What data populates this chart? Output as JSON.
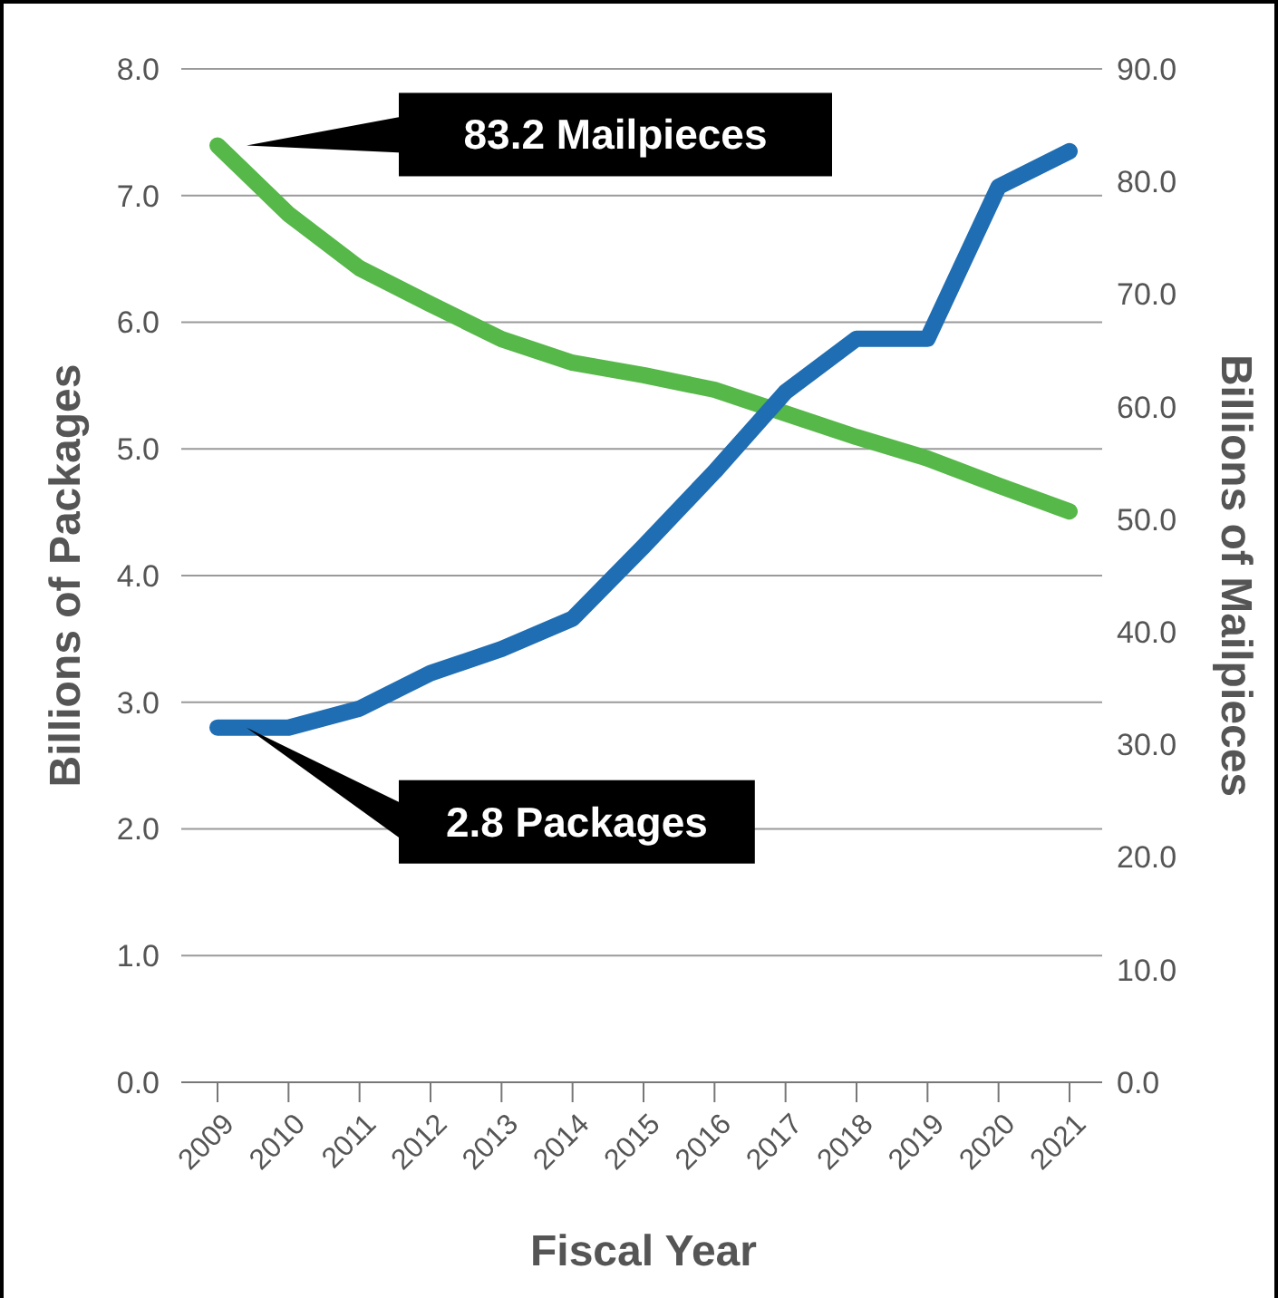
{
  "chart_data": {
    "type": "line",
    "categories": [
      "2009",
      "2010",
      "2011",
      "2012",
      "2013",
      "2014",
      "2015",
      "2016",
      "2017",
      "2018",
      "2019",
      "2020",
      "2021"
    ],
    "xlabel": "Fiscal Year",
    "ylabel": "Billions of Packages",
    "y2label": "Billions of Mailpieces",
    "series": [
      {
        "color": "#55b848",
        "axis": "y2",
        "values": [
          83.2,
          77.1,
          72.3,
          69.1,
          66.0,
          63.9,
          62.8,
          61.5,
          59.4,
          57.3,
          55.4,
          53.0,
          50.7
        ]
      },
      {
        "color": "#1f6db3",
        "values": [
          2.8,
          2.8,
          2.95,
          3.23,
          3.42,
          3.66,
          4.23,
          4.82,
          5.45,
          5.87,
          5.87,
          7.07,
          7.35
        ]
      }
    ],
    "ylim": [
      0,
      8
    ],
    "yticks": [
      {
        "value": 0,
        "label": "0.0"
      },
      {
        "value": 1,
        "label": "1.0"
      },
      {
        "value": 2,
        "label": "2.0"
      },
      {
        "value": 3,
        "label": "3.0"
      },
      {
        "value": 4,
        "label": "4.0"
      },
      {
        "value": 5,
        "label": "5.0"
      },
      {
        "value": 6,
        "label": "6.0"
      },
      {
        "value": 7,
        "label": "7.0"
      },
      {
        "value": 8,
        "label": "8.0"
      }
    ],
    "y2lim": [
      0,
      90
    ],
    "y2ticks": [
      {
        "value": 0,
        "label": "0.0"
      },
      {
        "value": 10,
        "label": "10.0"
      },
      {
        "value": 20,
        "label": "20.0"
      },
      {
        "value": 30,
        "label": "30.0"
      },
      {
        "value": 40,
        "label": "40.0"
      },
      {
        "value": 50,
        "label": "50.0"
      },
      {
        "value": 60,
        "label": "60.0"
      },
      {
        "value": 70,
        "label": "70.0"
      },
      {
        "value": 80,
        "label": "80.0"
      },
      {
        "value": 90,
        "label": "90.0"
      }
    ],
    "annotations": [
      "83.2 Mailpieces",
      "2.8 Packages"
    ],
    "grid": "y",
    "marker": "none",
    "line_style": "solid"
  }
}
